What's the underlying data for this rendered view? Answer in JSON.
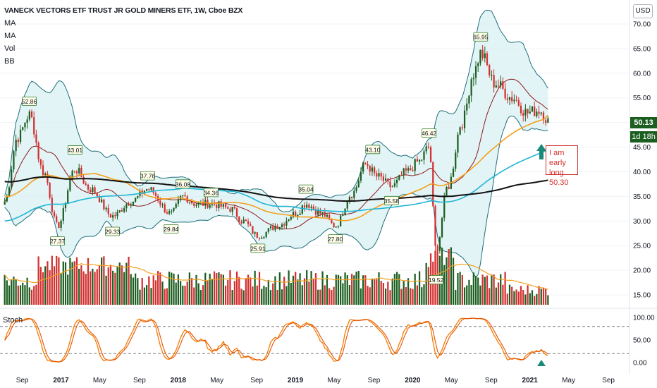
{
  "header": {
    "title": "VANECK VECTORS ETF TRUST JR GOLD MINERS ETF, 1W, Cboe BZX",
    "indicators": [
      "MA",
      "MA",
      "Vol",
      "BB"
    ],
    "currency_button": "USD"
  },
  "price_tags": {
    "last_price": "50.13",
    "countdown": "1d 18h"
  },
  "annotation": {
    "line1": "I am early",
    "line2": "long 50.30"
  },
  "stoch_label": "Stoch",
  "colors": {
    "up": "#1b5e20",
    "down": "#d32f2f",
    "ma_black": "#111111",
    "ma_orange": "#f59f1c",
    "ma_cyan": "#1fb5d5",
    "bb_fill": "#d7f0f2",
    "bb_line": "#1e6f7a",
    "stoch_k": "#f57c00",
    "stoch_d": "#e65100",
    "arrow": "#1b8a7a"
  },
  "chart_data": {
    "type": "candlestick",
    "price_axis": {
      "ticks": [
        "70.00",
        "65.00",
        "60.00",
        "55.00",
        "50.00",
        "45.00",
        "40.00",
        "35.00",
        "30.00",
        "25.00",
        "20.00",
        "15.00"
      ],
      "ylim": [
        13,
        72
      ]
    },
    "stoch_axis": {
      "ticks": [
        "100.00",
        "50.00",
        "0.00"
      ],
      "ylim": [
        0,
        100
      ],
      "levels": [
        80,
        20
      ]
    },
    "time_axis": [
      "Sep",
      "2017",
      "May",
      "Sep",
      "2018",
      "May",
      "Sep",
      "2019",
      "May",
      "Sep",
      "2020",
      "May",
      "Sep",
      "2021",
      "May",
      "Sep"
    ],
    "labels": [
      {
        "text": "52.86",
        "date": 2016.73,
        "value": 52.86,
        "pos": "high"
      },
      {
        "text": "43.01",
        "date": 2017.12,
        "value": 43.01,
        "pos": "high"
      },
      {
        "text": "27.37",
        "date": 2016.97,
        "value": 27.37,
        "pos": "low"
      },
      {
        "text": "29.33",
        "date": 2017.44,
        "value": 29.33,
        "pos": "low"
      },
      {
        "text": "37.76",
        "date": 2017.74,
        "value": 37.76,
        "pos": "high"
      },
      {
        "text": "29.84",
        "date": 2017.94,
        "value": 29.84,
        "pos": "low"
      },
      {
        "text": "36.08",
        "date": 2018.04,
        "value": 36.08,
        "pos": "high"
      },
      {
        "text": "34.36",
        "date": 2018.28,
        "value": 34.36,
        "pos": "high"
      },
      {
        "text": "25.91",
        "date": 2018.68,
        "value": 25.91,
        "pos": "low"
      },
      {
        "text": "35.04",
        "date": 2019.09,
        "value": 35.04,
        "pos": "high"
      },
      {
        "text": "27.80",
        "date": 2019.34,
        "value": 27.8,
        "pos": "low"
      },
      {
        "text": "43.10",
        "date": 2019.66,
        "value": 43.1,
        "pos": "high"
      },
      {
        "text": "35.58",
        "date": 2019.82,
        "value": 35.58,
        "pos": "low"
      },
      {
        "text": "46.42",
        "date": 2020.14,
        "value": 46.42,
        "pos": "high"
      },
      {
        "text": "19.52",
        "date": 2020.2,
        "value": 19.52,
        "pos": "low"
      },
      {
        "text": "65.95",
        "date": 2020.58,
        "value": 65.95,
        "pos": "high"
      }
    ],
    "anchors": [
      [
        2016.52,
        34.0
      ],
      [
        2016.63,
        47.0
      ],
      [
        2016.73,
        51.5
      ],
      [
        2016.85,
        40.0
      ],
      [
        2016.97,
        29.0
      ],
      [
        2017.12,
        40.5
      ],
      [
        2017.25,
        36.5
      ],
      [
        2017.44,
        31.0
      ],
      [
        2017.6,
        34.0
      ],
      [
        2017.74,
        36.5
      ],
      [
        2017.94,
        31.5
      ],
      [
        2018.04,
        35.0
      ],
      [
        2018.15,
        33.5
      ],
      [
        2018.28,
        33.5
      ],
      [
        2018.45,
        32.5
      ],
      [
        2018.55,
        30.0
      ],
      [
        2018.68,
        27.0
      ],
      [
        2018.85,
        29.0
      ],
      [
        2019.0,
        31.5
      ],
      [
        2019.09,
        33.5
      ],
      [
        2019.22,
        31.5
      ],
      [
        2019.34,
        29.0
      ],
      [
        2019.48,
        35.5
      ],
      [
        2019.6,
        41.5
      ],
      [
        2019.7,
        39.0
      ],
      [
        2019.82,
        37.0
      ],
      [
        2019.95,
        40.0
      ],
      [
        2020.05,
        42.0
      ],
      [
        2020.14,
        45.0
      ],
      [
        2020.2,
        24.0
      ],
      [
        2020.3,
        37.0
      ],
      [
        2020.42,
        50.0
      ],
      [
        2020.52,
        60.0
      ],
      [
        2020.58,
        64.0
      ],
      [
        2020.7,
        58.0
      ],
      [
        2020.85,
        55.0
      ],
      [
        2020.98,
        52.0
      ],
      [
        2021.08,
        52.5
      ],
      [
        2021.17,
        50.13
      ]
    ]
  }
}
